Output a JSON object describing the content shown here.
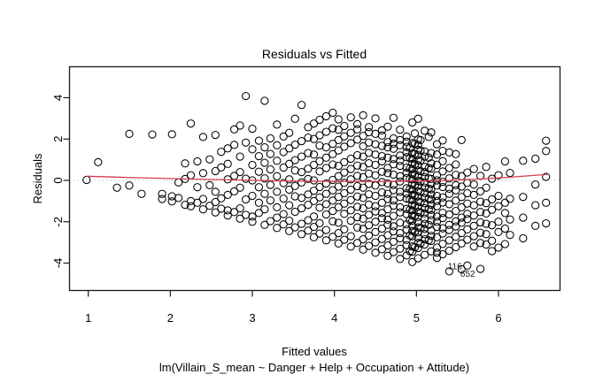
{
  "chart_data": {
    "type": "scatter",
    "title": "Residuals vs Fitted",
    "xlabel": "Fitted values",
    "sublabel": "lm(Villain_S_mean ~ Danger + Help + Occupation + Attitude)",
    "ylabel": "Residuals",
    "xticks": [
      "1",
      "2",
      "3",
      "4",
      "5",
      "6"
    ],
    "xtick_values": [
      1,
      2,
      3,
      4,
      5,
      6
    ],
    "yticks": [
      "4",
      "2",
      "0",
      "-2",
      "-4"
    ],
    "ytick_values": [
      4,
      2,
      0,
      -2,
      -4
    ],
    "xlim": [
      0.76,
      6.75
    ],
    "ylim": [
      -5.3,
      5.5
    ],
    "grid": "off",
    "legend": "none",
    "marker": "open-circle",
    "point_color": "#000000",
    "smoother_color": "#d63a52",
    "zero_line_color": "#b5b5b5",
    "zero_line_value": 0,
    "residual_rule": "residual = y_obs - fitted; each stripe lists observed values y_obs at one fitted value f",
    "smoother": [
      [
        0.98,
        0.2
      ],
      [
        1.6,
        0.13
      ],
      [
        2.2,
        0.07
      ],
      [
        2.8,
        0.02
      ],
      [
        3.4,
        -0.03
      ],
      [
        4.0,
        -0.05
      ],
      [
        4.6,
        -0.05
      ],
      [
        5.0,
        -0.03
      ],
      [
        5.4,
        0.0
      ],
      [
        5.8,
        0.07
      ],
      [
        6.2,
        0.17
      ],
      [
        6.62,
        0.3
      ]
    ],
    "labeled_points": [
      {
        "label": "116",
        "f": 5.62,
        "y_obs": 1.5
      },
      {
        "label": "652",
        "f": 5.78,
        "y_obs": 1.5
      }
    ],
    "stripes": [
      {
        "f": 0.98,
        "y": [
          1.0
        ]
      },
      {
        "f": 1.12,
        "y": [
          2.0
        ]
      },
      {
        "f": 1.35,
        "y": [
          1.0
        ]
      },
      {
        "f": 1.5,
        "y": [
          1.25,
          3.75
        ]
      },
      {
        "f": 1.65,
        "y": [
          1.0
        ]
      },
      {
        "f": 1.78,
        "y": [
          4.0
        ]
      },
      {
        "f": 1.9,
        "y": [
          1.0,
          1.25
        ]
      },
      {
        "f": 2.02,
        "y": [
          1.0,
          1.25,
          4.25
        ]
      },
      {
        "f": 2.1,
        "y": [
          1.25,
          2.0
        ]
      },
      {
        "f": 2.18,
        "y": [
          1.0,
          2.25,
          3.0
        ]
      },
      {
        "f": 2.25,
        "y": [
          1.0,
          1.25,
          2.5,
          5.0
        ]
      },
      {
        "f": 2.33,
        "y": [
          1.25,
          2.0,
          3.25
        ]
      },
      {
        "f": 2.4,
        "y": [
          1.0,
          1.5,
          2.75,
          4.5
        ]
      },
      {
        "f": 2.48,
        "y": [
          1.25,
          2.25,
          3.5
        ]
      },
      {
        "f": 2.55,
        "y": [
          1.0,
          1.5,
          2.0,
          3.0,
          4.75
        ]
      },
      {
        "f": 2.62,
        "y": [
          1.25,
          1.75,
          3.25,
          4.0
        ]
      },
      {
        "f": 2.7,
        "y": [
          1.0,
          1.25,
          2.0,
          2.75,
          3.5,
          4.25
        ]
      },
      {
        "f": 2.78,
        "y": [
          1.25,
          2.25,
          3.0,
          4.5,
          5.25
        ]
      },
      {
        "f": 2.85,
        "y": [
          1.0,
          1.5,
          2.5,
          3.25,
          4.0,
          5.5
        ]
      },
      {
        "f": 2.92,
        "y": [
          1.25,
          2.0,
          3.0,
          4.75,
          7.0
        ]
      },
      {
        "f": 3.0,
        "y": [
          1.0,
          1.25,
          2.25,
          3.0,
          3.75,
          4.5,
          5.5
        ]
      },
      {
        "f": 3.08,
        "y": [
          1.5,
          2.0,
          2.75,
          3.5,
          4.25,
          5.0
        ]
      },
      {
        "f": 3.15,
        "y": [
          1.0,
          1.75,
          2.5,
          3.25,
          4.0,
          4.75,
          7.0
        ]
      },
      {
        "f": 3.22,
        "y": [
          1.25,
          2.25,
          3.0,
          3.75,
          4.5,
          5.25
        ]
      },
      {
        "f": 3.3,
        "y": [
          1.0,
          1.5,
          2.0,
          2.75,
          3.5,
          4.25,
          5.0,
          6.0
        ]
      },
      {
        "f": 3.38,
        "y": [
          1.25,
          1.75,
          2.5,
          3.25,
          4.0,
          4.75,
          5.5
        ]
      },
      {
        "f": 3.45,
        "y": [
          1.0,
          1.5,
          2.25,
          3.0,
          3.5,
          4.25,
          5.0,
          5.75
        ]
      },
      {
        "f": 3.52,
        "y": [
          1.25,
          2.0,
          2.75,
          3.25,
          4.0,
          4.5,
          5.25,
          6.5
        ]
      },
      {
        "f": 3.6,
        "y": [
          1.0,
          1.5,
          2.25,
          2.75,
          3.5,
          4.0,
          4.75,
          5.5,
          7.25
        ]
      },
      {
        "f": 3.68,
        "y": [
          1.25,
          1.75,
          2.5,
          3.0,
          3.75,
          4.25,
          5.0,
          5.75,
          6.25
        ]
      },
      {
        "f": 3.75,
        "y": [
          1.0,
          1.5,
          2.0,
          2.75,
          3.25,
          3.75,
          4.5,
          5.0,
          5.75,
          6.5
        ]
      },
      {
        "f": 3.82,
        "y": [
          1.25,
          1.75,
          2.5,
          3.0,
          3.5,
          4.25,
          4.75,
          5.5,
          6.0,
          6.75
        ]
      },
      {
        "f": 3.9,
        "y": [
          1.0,
          1.5,
          2.25,
          2.75,
          3.25,
          3.75,
          4.5,
          5.0,
          5.5,
          6.25,
          7.0
        ]
      },
      {
        "f": 3.98,
        "y": [
          1.25,
          2.0,
          2.5,
          3.0,
          3.5,
          4.0,
          4.75,
          5.25,
          5.75,
          6.5,
          7.25
        ]
      },
      {
        "f": 4.05,
        "y": [
          1.0,
          1.5,
          2.0,
          2.75,
          3.25,
          3.75,
          4.25,
          4.75,
          5.5,
          6.0,
          6.5,
          7.0
        ]
      },
      {
        "f": 4.12,
        "y": [
          1.25,
          1.75,
          2.5,
          3.0,
          3.5,
          4.0,
          4.5,
          5.0,
          5.75,
          6.25,
          6.75
        ]
      },
      {
        "f": 4.2,
        "y": [
          1.0,
          1.5,
          2.25,
          2.75,
          3.25,
          3.75,
          4.25,
          4.75,
          5.25,
          6.0,
          6.5,
          7.25
        ]
      },
      {
        "f": 4.28,
        "y": [
          1.25,
          2.0,
          2.5,
          3.0,
          3.5,
          4.0,
          4.5,
          5.0,
          5.5,
          6.25,
          6.75,
          7.0
        ]
      },
      {
        "f": 4.35,
        "y": [
          1.0,
          1.5,
          2.0,
          2.5,
          3.0,
          3.5,
          4.0,
          4.5,
          5.0,
          5.5,
          6.0,
          6.5,
          7.5
        ]
      },
      {
        "f": 4.42,
        "y": [
          1.25,
          1.75,
          2.25,
          2.75,
          3.25,
          3.75,
          4.25,
          4.75,
          5.25,
          5.75,
          6.25,
          6.75,
          7.0
        ]
      },
      {
        "f": 4.5,
        "y": [
          1.0,
          1.5,
          2.0,
          2.5,
          3.0,
          3.25,
          3.75,
          4.25,
          4.75,
          5.25,
          5.75,
          6.25,
          6.75,
          7.5
        ]
      },
      {
        "f": 4.58,
        "y": [
          1.25,
          1.75,
          2.25,
          2.75,
          3.0,
          3.5,
          4.0,
          4.5,
          5.0,
          5.5,
          5.75,
          6.25,
          6.75,
          7.0
        ]
      },
      {
        "f": 4.65,
        "y": [
          1.0,
          1.5,
          2.0,
          2.5,
          2.75,
          3.25,
          3.75,
          4.0,
          4.5,
          5.0,
          5.25,
          5.75,
          6.25,
          6.5,
          7.25
        ]
      },
      {
        "f": 4.72,
        "y": [
          1.25,
          1.75,
          2.25,
          2.5,
          3.0,
          3.5,
          3.75,
          4.25,
          4.5,
          5.0,
          5.5,
          5.75,
          6.25,
          6.5,
          6.75,
          7.75
        ]
      },
      {
        "f": 4.8,
        "y": [
          1.0,
          1.5,
          2.0,
          2.25,
          2.75,
          3.25,
          3.5,
          4.0,
          4.25,
          4.75,
          5.0,
          5.5,
          5.75,
          6.0,
          6.5,
          6.75,
          7.25
        ]
      },
      {
        "f": 4.88,
        "y": [
          1.25,
          1.75,
          2.0,
          2.5,
          2.75,
          3.25,
          3.5,
          4.0,
          4.25,
          4.5,
          5.0,
          5.25,
          5.5,
          6.0,
          6.25,
          6.5,
          6.75,
          7.0
        ]
      },
      {
        "f": 4.92,
        "y": [
          1.5,
          2.25,
          3.0,
          3.5,
          4.0,
          4.5,
          5.0,
          5.5,
          6.0,
          6.5
        ]
      },
      {
        "f": 4.95,
        "y": [
          1.0,
          1.5,
          1.75,
          2.25,
          2.5,
          2.75,
          3.0,
          3.25,
          3.5,
          3.75,
          4.0,
          4.25,
          4.5,
          4.75,
          5.0,
          5.25,
          5.5,
          5.75,
          6.0,
          6.25,
          6.75,
          7.75
        ]
      },
      {
        "f": 4.98,
        "y": [
          1.75,
          2.5,
          3.25,
          3.75,
          4.25,
          4.75,
          5.25,
          5.75,
          6.25,
          6.75,
          7.25
        ]
      },
      {
        "f": 5.02,
        "y": [
          1.25,
          1.75,
          2.0,
          2.25,
          2.5,
          2.75,
          3.0,
          3.25,
          3.5,
          3.75,
          4.0,
          4.25,
          4.5,
          4.75,
          5.0,
          5.25,
          5.5,
          5.75,
          6.0,
          6.25,
          6.5,
          6.75,
          7.0,
          8.0
        ]
      },
      {
        "f": 5.05,
        "y": [
          2.0,
          2.75,
          3.5,
          4.0,
          4.5,
          5.0,
          5.5,
          6.0,
          6.5,
          7.0
        ]
      },
      {
        "f": 5.1,
        "y": [
          1.5,
          2.0,
          2.25,
          2.5,
          2.75,
          3.0,
          3.25,
          3.5,
          3.75,
          4.0,
          4.25,
          4.5,
          4.75,
          5.0,
          5.25,
          5.5,
          5.75,
          6.25,
          6.5,
          7.5
        ]
      },
      {
        "f": 5.15,
        "y": [
          2.25,
          3.0,
          3.75,
          4.25,
          4.75,
          5.25,
          5.75,
          6.25,
          7.25
        ]
      },
      {
        "f": 5.18,
        "y": [
          1.75,
          2.25,
          2.5,
          2.75,
          3.25,
          3.5,
          3.75,
          4.0,
          4.25,
          4.5,
          4.75,
          5.0,
          5.25,
          5.75,
          6.0,
          6.5,
          7.5
        ]
      },
      {
        "f": 5.25,
        "y": [
          1.5,
          1.75,
          2.0,
          2.5,
          3.0,
          3.25,
          3.5,
          4.0,
          4.25,
          4.5,
          5.0,
          5.25,
          5.5,
          6.0,
          6.5,
          7.0
        ]
      },
      {
        "f": 5.32,
        "y": [
          1.75,
          2.25,
          2.75,
          3.0,
          3.5,
          3.75,
          4.25,
          4.5,
          5.0,
          5.25,
          5.75,
          6.25,
          6.75,
          7.25
        ]
      },
      {
        "f": 5.4,
        "y": [
          1.0,
          2.0,
          2.5,
          3.0,
          3.25,
          3.75,
          4.25,
          4.75,
          5.0,
          5.5,
          6.0,
          6.75
        ]
      },
      {
        "f": 5.48,
        "y": [
          2.25,
          2.75,
          3.25,
          3.5,
          4.0,
          4.5,
          5.0,
          5.25,
          5.75,
          6.25,
          6.75
        ]
      },
      {
        "f": 5.55,
        "y": [
          1.25,
          2.5,
          3.0,
          3.5,
          3.75,
          4.25,
          4.75,
          5.25,
          5.75,
          7.5
        ]
      },
      {
        "f": 5.62,
        "y": [
          2.75,
          3.25,
          3.75,
          4.0,
          4.5,
          5.0,
          5.5,
          6.0
        ]
      },
      {
        "f": 5.7,
        "y": [
          2.5,
          3.0,
          3.5,
          4.0,
          4.5,
          5.0,
          5.5,
          6.25
        ]
      },
      {
        "f": 5.78,
        "y": [
          2.75,
          3.25,
          3.75,
          4.25,
          4.75,
          5.25,
          6.0
        ]
      },
      {
        "f": 5.85,
        "y": [
          2.75,
          3.25,
          3.75,
          4.25,
          4.75,
          5.5,
          6.5
        ]
      },
      {
        "f": 5.92,
        "y": [
          2.5,
          3.0,
          3.75,
          4.5,
          5.0,
          6.0
        ]
      },
      {
        "f": 6.0,
        "y": [
          2.75,
          3.5,
          4.0,
          4.75,
          5.25,
          6.25
        ]
      },
      {
        "f": 6.08,
        "y": [
          3.0,
          3.75,
          4.5,
          5.0,
          7.0
        ]
      },
      {
        "f": 6.14,
        "y": [
          3.5,
          4.25,
          5.25,
          6.5
        ]
      },
      {
        "f": 6.3,
        "y": [
          3.5,
          4.5,
          5.5,
          7.25
        ]
      },
      {
        "f": 6.45,
        "y": [
          4.25,
          5.25,
          6.25,
          7.5
        ]
      },
      {
        "f": 6.58,
        "y": [
          4.5,
          5.5,
          6.75,
          8.0,
          8.5
        ]
      }
    ]
  }
}
